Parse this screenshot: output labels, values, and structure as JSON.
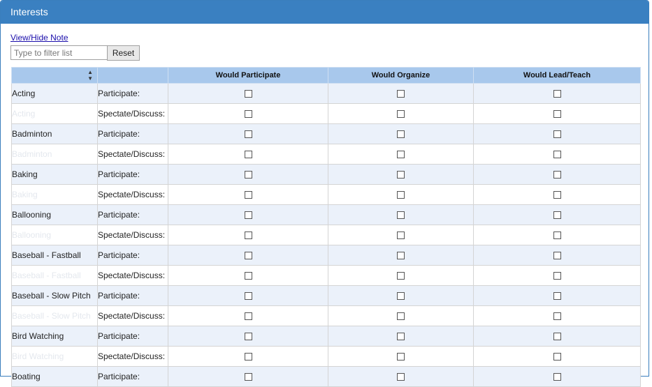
{
  "panel": {
    "title": "Interests"
  },
  "note_link": "View/Hide Note",
  "filter": {
    "placeholder": "Type to filter list",
    "reset_label": "Reset"
  },
  "table": {
    "headers": {
      "col1": "",
      "col2": "",
      "participate": "Would Participate",
      "organize": "Would Organize",
      "lead": "Would Lead/Teach"
    },
    "row_types": {
      "participate": "Participate:",
      "spectate": "Spectate/Discuss:"
    },
    "rows": [
      {
        "name": "Acting",
        "type": "Participate:"
      },
      {
        "name": "Acting",
        "type": "Spectate/Discuss:"
      },
      {
        "name": "Badminton",
        "type": "Participate:"
      },
      {
        "name": "Badminton",
        "type": "Spectate/Discuss:"
      },
      {
        "name": "Baking",
        "type": "Participate:"
      },
      {
        "name": "Baking",
        "type": "Spectate/Discuss:"
      },
      {
        "name": "Ballooning",
        "type": "Participate:"
      },
      {
        "name": "Ballooning",
        "type": "Spectate/Discuss:"
      },
      {
        "name": "Baseball - Fastball",
        "type": "Participate:"
      },
      {
        "name": "Baseball - Fastball",
        "type": "Spectate/Discuss:"
      },
      {
        "name": "Baseball - Slow Pitch",
        "type": "Participate:"
      },
      {
        "name": "Baseball - Slow Pitch",
        "type": "Spectate/Discuss:"
      },
      {
        "name": "Bird Watching",
        "type": "Participate:"
      },
      {
        "name": "Bird Watching",
        "type": "Spectate/Discuss:"
      },
      {
        "name": "Boating",
        "type": "Participate:"
      }
    ]
  },
  "colors": {
    "header": "#3a80c1",
    "table_header": "#a8c8ec",
    "row_alt": "#ebf1fa"
  }
}
